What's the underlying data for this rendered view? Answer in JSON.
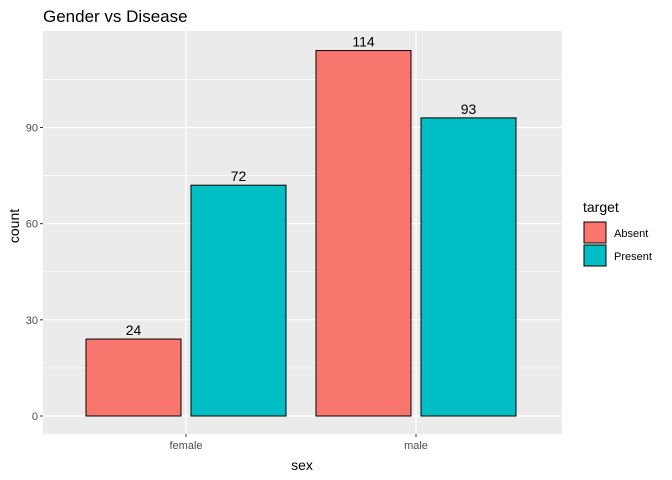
{
  "chart_data": {
    "type": "bar",
    "title": "Gender vs Disease",
    "xlabel": "sex",
    "ylabel": "count",
    "categories": [
      "female",
      "male"
    ],
    "series": [
      {
        "name": "Absent",
        "values": [
          24,
          114
        ],
        "color": "#F8766D"
      },
      {
        "name": "Present",
        "values": [
          72,
          93
        ],
        "color": "#00BFC4"
      }
    ],
    "ylim": [
      0,
      120
    ],
    "yticks": [
      0,
      30,
      60,
      90
    ],
    "ytick_labels": [
      "0",
      "30",
      "60",
      "90"
    ],
    "data_labels": [
      [
        "24",
        "114"
      ],
      [
        "72",
        "93"
      ]
    ],
    "grid": true,
    "legend": {
      "title": "target",
      "position": "right"
    }
  }
}
